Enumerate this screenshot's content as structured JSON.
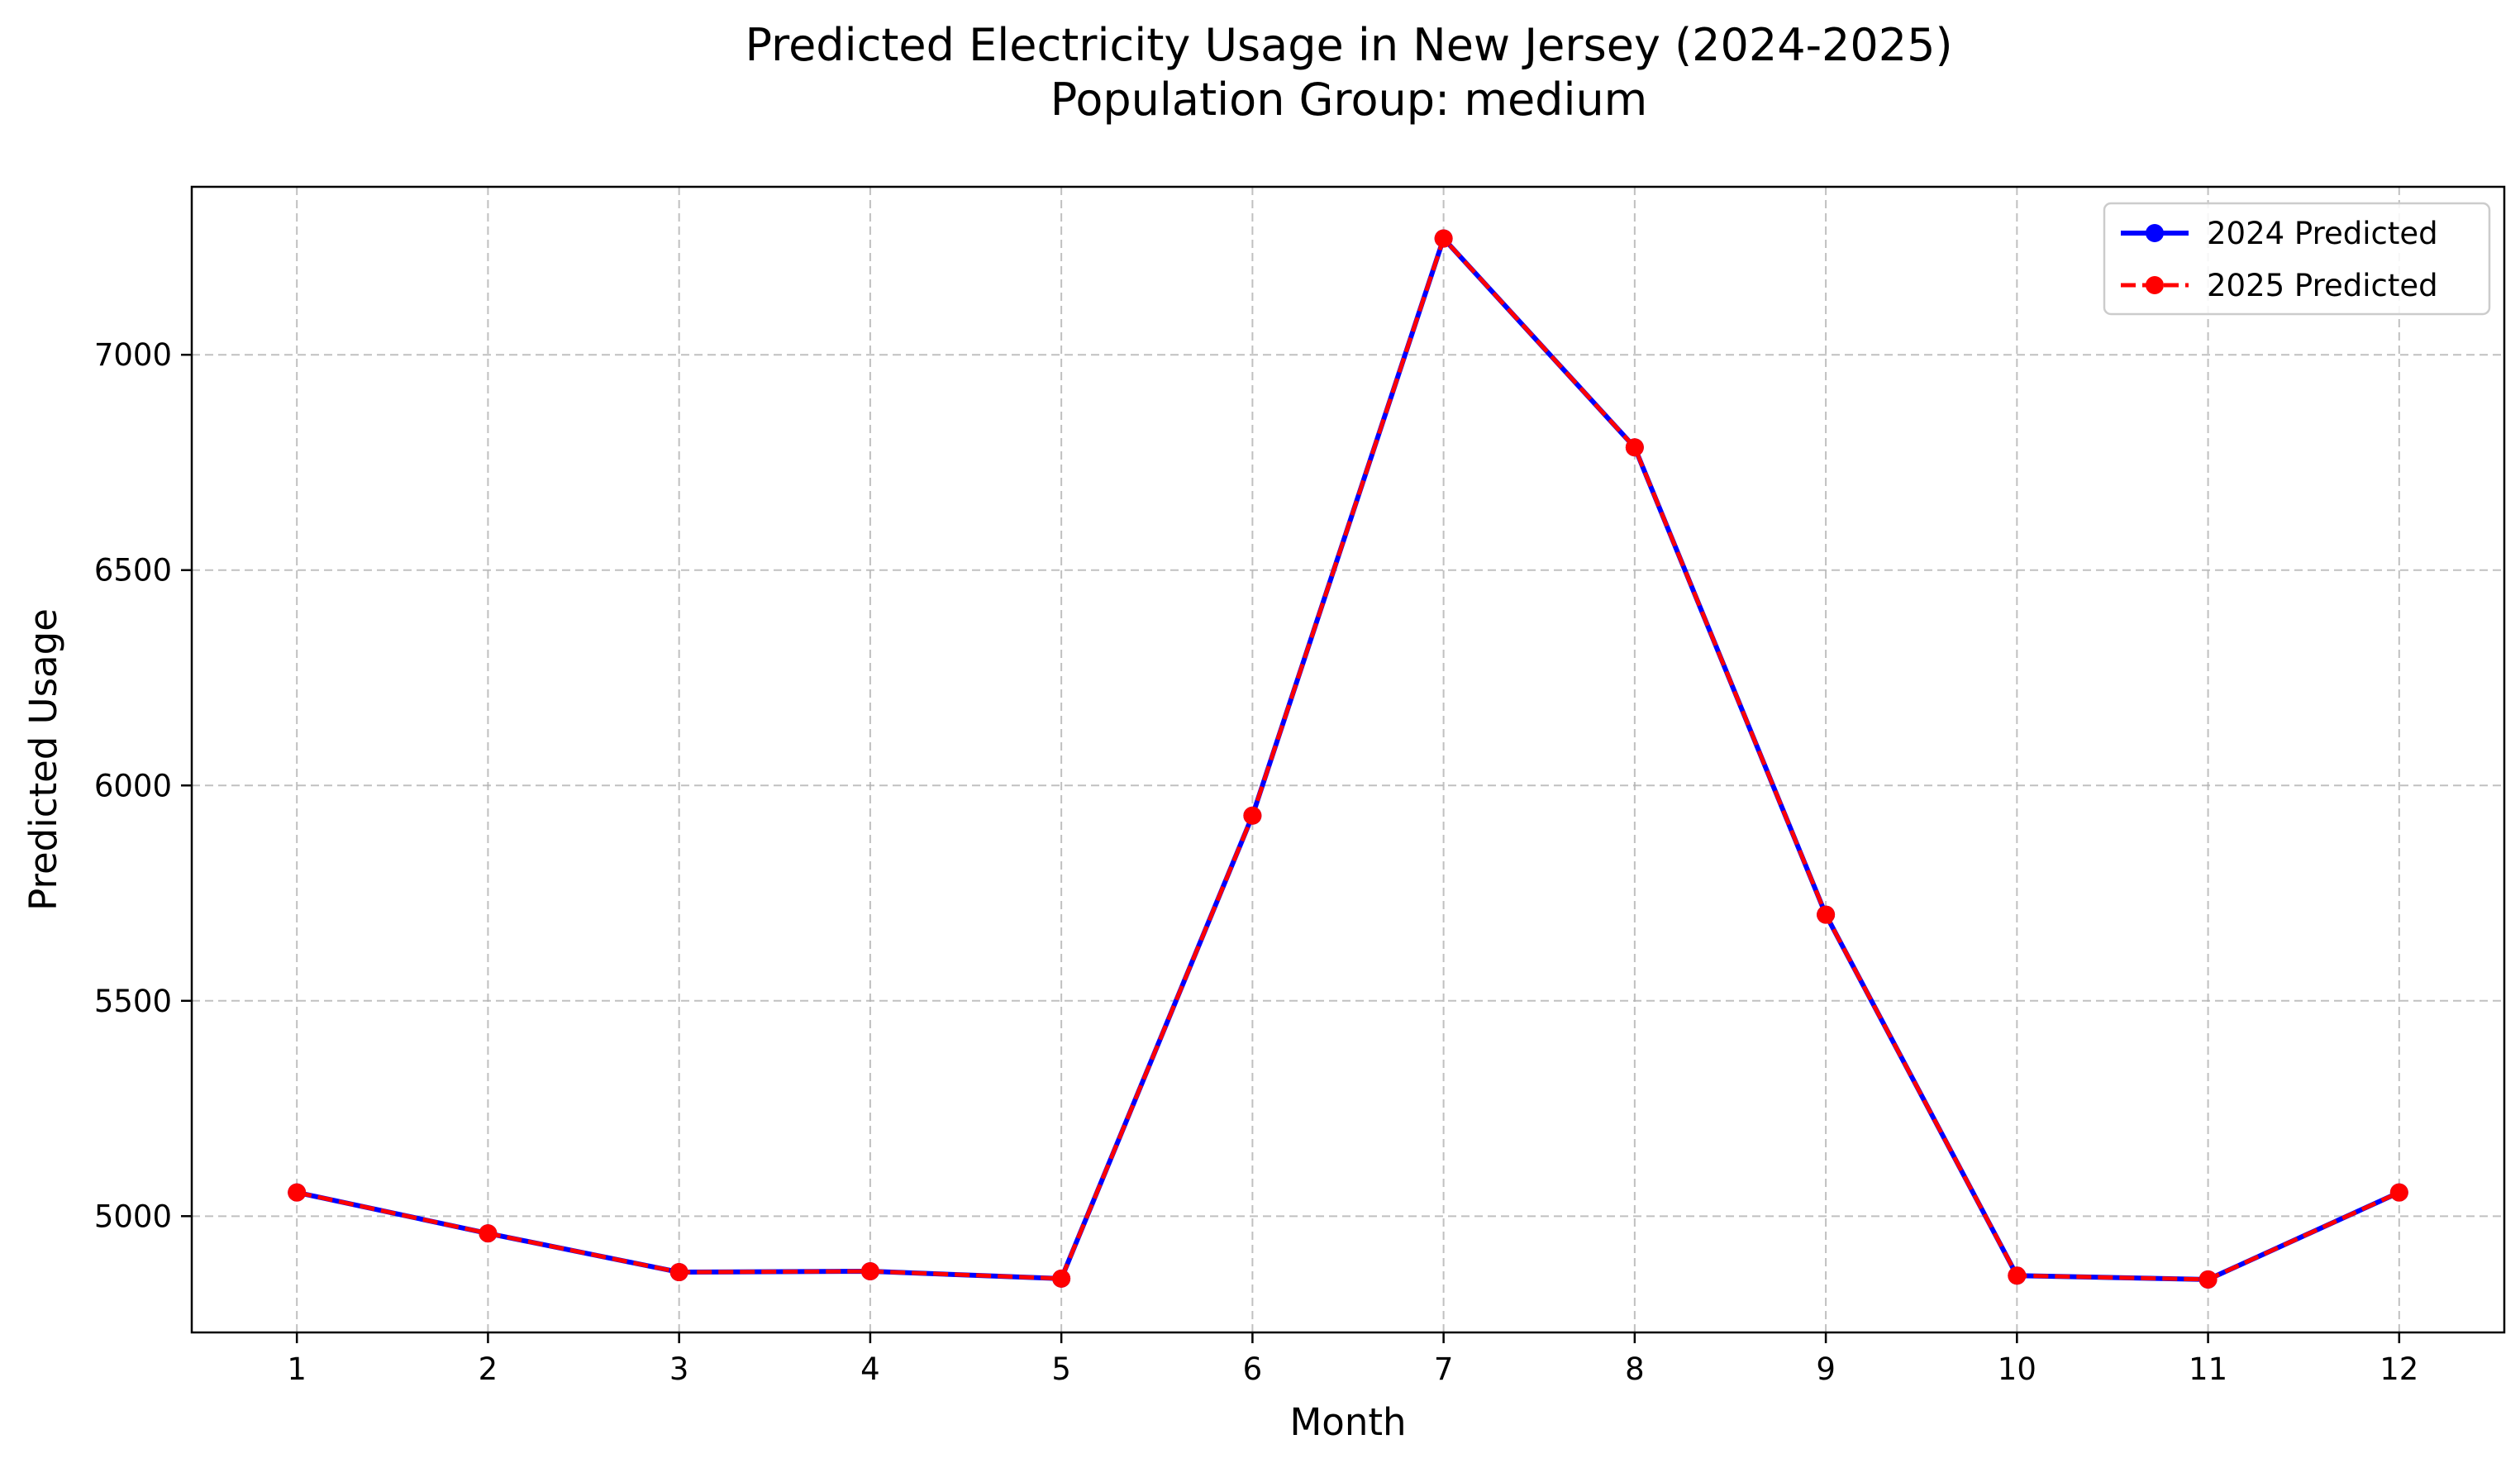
{
  "chart_data": {
    "type": "line",
    "title": "Predicted Electricity Usage in New Jersey (2024-2025)",
    "subtitle": "Population Group: medium",
    "xlabel": "Month",
    "ylabel": "Predicted Usage",
    "x": [
      1,
      2,
      3,
      4,
      5,
      6,
      7,
      8,
      9,
      10,
      11,
      12
    ],
    "x_ticks": [
      1,
      2,
      3,
      4,
      5,
      6,
      7,
      8,
      9,
      10,
      11,
      12
    ],
    "y_ticks": [
      5000,
      5500,
      6000,
      6500,
      7000
    ],
    "xlim": [
      0.45,
      12.55
    ],
    "ylim": [
      4730,
      7390
    ],
    "grid": true,
    "legend_position": "top-right",
    "series": [
      {
        "name": "2024 Predicted",
        "values": [
          5055,
          4960,
          4870,
          4872,
          4855,
          5930,
          7270,
          6785,
          5700,
          4862,
          4853,
          5055
        ],
        "color": "#0000ff",
        "line_style": "solid",
        "marker": "circle"
      },
      {
        "name": "2025 Predicted",
        "values": [
          5055,
          4960,
          4870,
          4872,
          4855,
          5930,
          7270,
          6785,
          5700,
          4862,
          4853,
          5055
        ],
        "color": "#ff0000",
        "line_style": "dashed",
        "marker": "circle"
      }
    ]
  }
}
